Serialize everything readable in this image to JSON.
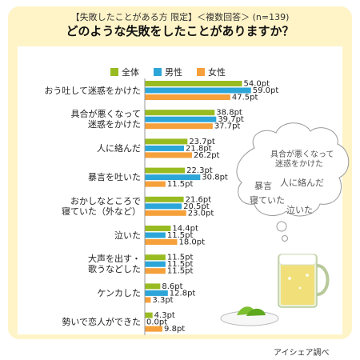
{
  "header": {
    "subtitle": "【失敗したことがある方 限定】＜複数回答＞ (n=139)",
    "title": "どのような失敗をしたことがありますか？"
  },
  "colors": {
    "all": "#99bb22",
    "male": "#2ca6d8",
    "female": "#f5a03a",
    "card": "#fff4c8"
  },
  "chart_data": {
    "type": "bar",
    "orientation": "horizontal",
    "unit": "pt",
    "categories": [
      "おう吐して迷惑をかけた",
      "具合が悪くなって 迷惑をかけた",
      "人に絡んだ",
      "暴言を吐いた",
      "おかしなところで 寝ていた（外など）",
      "泣いた",
      "大声を出す・ 歌うなどした",
      "ケンカした",
      "勢いで恋人ができた"
    ],
    "series": [
      {
        "name": "全体",
        "values": [
          54.0,
          38.8,
          23.7,
          22.3,
          21.6,
          14.4,
          11.5,
          8.6,
          4.3
        ]
      },
      {
        "name": "男性",
        "values": [
          59.0,
          39.7,
          21.8,
          30.8,
          20.5,
          11.5,
          11.5,
          12.8,
          0.0
        ]
      },
      {
        "name": "女性",
        "values": [
          47.5,
          37.7,
          26.2,
          11.5,
          23.0,
          18.0,
          11.5,
          3.3,
          9.8
        ]
      }
    ],
    "legend_position": "top",
    "grid": false
  },
  "bubble": {
    "lines": [
      "具合が悪くなって",
      "迷惑をかけた",
      "暴言",
      "人に絡んだ",
      "寝ていた",
      "泣いた"
    ]
  },
  "source": "アイシェア調べ"
}
